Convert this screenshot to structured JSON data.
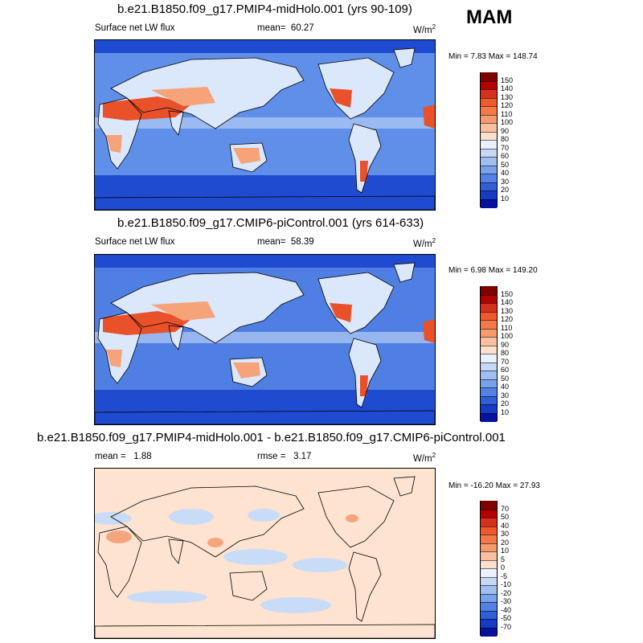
{
  "season": "MAM",
  "panels": [
    {
      "id": "p1",
      "title": "b.e21.B1850.f09_g17.PMIP4-midHolo.001 (yrs 90-109)",
      "variable": "Surface net LW flux",
      "mean_label": "mean=",
      "mean": "60.27",
      "units_base": "W/m",
      "units_exp": "2",
      "minmax": "Min =   7.83 Max = 148.74",
      "colorbar": {
        "labels": [
          "150",
          "140",
          "130",
          "120",
          "110",
          "100",
          "90",
          "80",
          "70",
          "60",
          "50",
          "40",
          "30",
          "20",
          "10"
        ],
        "colors": [
          "#7f0000",
          "#b30000",
          "#d7301f",
          "#ef5a2d",
          "#f4784a",
          "#f69a6d",
          "#f9bf9e",
          "#fde0cc",
          "#eaf1fb",
          "#c6d8f6",
          "#a0bef0",
          "#7aa2ea",
          "#5382e4",
          "#2f5fd9",
          "#173bc4",
          "#06119c"
        ]
      }
    },
    {
      "id": "p2",
      "title": "b.e21.B1850.f09_g17.CMIP6-piControl.001 (yrs 614-633)",
      "variable": "Surface net LW flux",
      "mean_label": "mean=",
      "mean": "58.39",
      "units_base": "W/m",
      "units_exp": "2",
      "minmax": "Min =   6.98 Max = 149.20",
      "colorbar": {
        "labels": [
          "150",
          "140",
          "130",
          "120",
          "110",
          "100",
          "90",
          "80",
          "70",
          "60",
          "50",
          "40",
          "30",
          "20",
          "10"
        ],
        "colors": [
          "#7f0000",
          "#b30000",
          "#d7301f",
          "#ef5a2d",
          "#f4784a",
          "#f69a6d",
          "#f9bf9e",
          "#fde0cc",
          "#eaf1fb",
          "#c6d8f6",
          "#a0bef0",
          "#7aa2ea",
          "#5382e4",
          "#2f5fd9",
          "#173bc4",
          "#06119c"
        ]
      }
    },
    {
      "id": "p3",
      "title": "b.e21.B1850.f09_g17.PMIP4-midHolo.001 - b.e21.B1850.f09_g17.CMIP6-piControl.001",
      "mean_label": "mean =",
      "mean": "1.88",
      "rmse_label": "rmse =",
      "rmse": "3.17",
      "units_base": "W/m",
      "units_exp": "2",
      "minmax": "Min = -16.20 Max =  27.93",
      "colorbar": {
        "labels": [
          "70",
          "50",
          "40",
          "30",
          "20",
          "10",
          "5",
          "0",
          "-5",
          "-10",
          "-20",
          "-30",
          "-40",
          "-50",
          "-70"
        ],
        "colors": [
          "#7f0000",
          "#b30000",
          "#d7301f",
          "#ef5a2d",
          "#f4784a",
          "#f69a6d",
          "#f9bf9e",
          "#fde0cc",
          "#eaf1fb",
          "#c6d8f6",
          "#a0bef0",
          "#7aa2ea",
          "#5382e4",
          "#2f5fd9",
          "#173bc4",
          "#06119c"
        ]
      }
    }
  ],
  "map_colors": {
    "ocean_p1": "#5f8fe8",
    "ocean_p2": "#4f7fe2",
    "polar": "#1f4bd0",
    "tropics": "#a9c4f2",
    "desert_hot": "#e8512a",
    "desert_warm": "#f7a37a",
    "land_cool": "#dbe7fb",
    "diff_bg": "#fde3d0",
    "diff_neg": "#c9dcf7",
    "diff_pos": "#f5a57d",
    "coast": "#000000"
  }
}
